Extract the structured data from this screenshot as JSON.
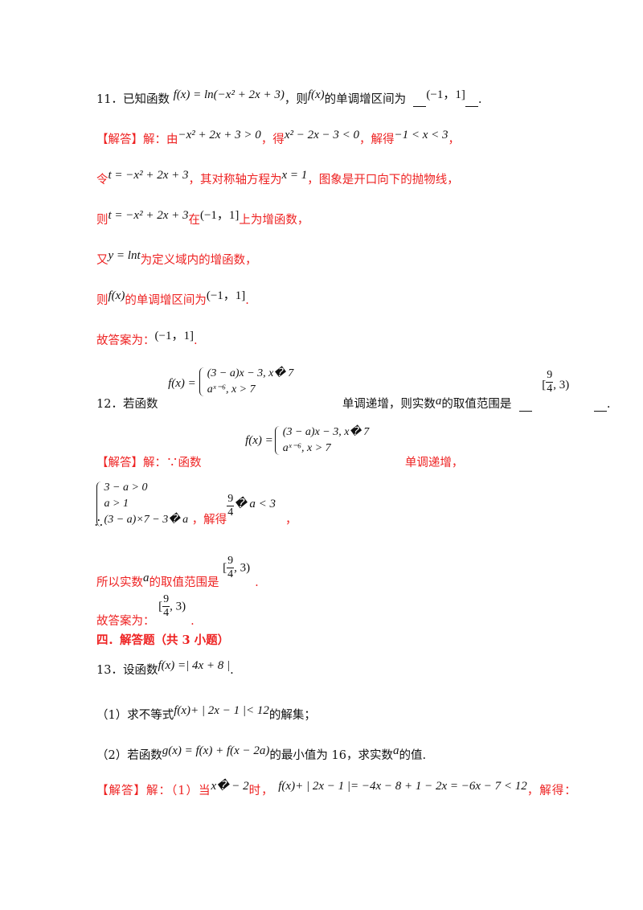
{
  "q11": {
    "num": "11．",
    "pre": "已知函数",
    "f1": "f(x) = ln(−x² + 2x + 3)",
    "mid": "，则",
    "f2": "f(x)",
    "post": "的单调增区间为",
    "ans": "(−1，1]",
    "end": "."
  },
  "a11": {
    "l1": {
      "tag": "【解答】",
      "s1": "解：由",
      "m1": "−x² + 2x + 3 > 0",
      "s2": "，得",
      "m2": "x² − 2x − 3 < 0",
      "s3": "，解得",
      "m3": "−1 < x < 3",
      "s4": "，"
    },
    "l2": {
      "s1": "令",
      "m1": "t = −x² + 2x + 3",
      "s2": "，其对称轴方程为",
      "m2": "x = 1",
      "s3": "，图象是开口向下的抛物线，"
    },
    "l3": {
      "s1": "则",
      "m1": "t = −x² + 2x + 3",
      "s2": "在",
      "m2": "(−1，1]",
      "s3": "上为增函数，"
    },
    "l4": {
      "s1": "又",
      "m1": "y = lnt",
      "s2": "为定义域内的增函数，"
    },
    "l5": {
      "s1": "则",
      "m1": "f(x)",
      "s2": "的单调增区间为",
      "m2": "(−1，1]",
      "s3": "."
    },
    "l6": {
      "s1": "故答案为：",
      "m1": "(−1，1]",
      "s2": "."
    }
  },
  "q12": {
    "num": "12．",
    "pre": "若函数",
    "f": "f(x) =",
    "case1": "(3 − a)x − 3, x� 7",
    "case2": "aˣ⁻⁶, x > 7",
    "post": "单调递增，则实数",
    "var": "a",
    "post2": "的取值范围是",
    "ans_open": "[",
    "ans_num": "9",
    "ans_den": "4",
    "ans_close": ", 3)",
    "end": "."
  },
  "a12": {
    "l1": {
      "tag": "【解答】",
      "s1": "解：∵函数",
      "f": "f(x) =",
      "case1": "(3 − a)x − 3, x� 7",
      "case2": "aˣ⁻⁶, x > 7",
      "s2": "单调递增，"
    },
    "l2": {
      "therefore": "∴",
      "c1": "3 − a > 0",
      "c2": "a > 1",
      "c3": "(3 − a)×7 − 3� a",
      "s1": "，解得",
      "num": "9",
      "den": "4",
      "rest": "� a < 3",
      "s2": "，"
    },
    "l3": {
      "s1": "所以实数",
      "var": "a",
      "s2": "的取值范围是",
      "open": "[",
      "num": "9",
      "den": "4",
      "close": ", 3)",
      "end": "."
    },
    "l4": {
      "s1": "故答案为：",
      "open": "[",
      "num": "9",
      "den": "4",
      "close": ", 3)",
      "end": "."
    }
  },
  "section": {
    "title": "四．解答题（共 3 小题）"
  },
  "q13": {
    "num": "13．",
    "pre": "设函数",
    "f": "f(x) =| 4x + 8 |",
    "end": ".",
    "p1": {
      "s1": "（1）求不等式",
      "m1": "f(x)+ | 2x − 1 |< 12",
      "s2": "的解集；"
    },
    "p2": {
      "s1": "（2）若函数",
      "m1": "g(x) = f(x) + f(x − 2a)",
      "s2": "的最小值为 16，求实数",
      "var": "a",
      "s3": "的值."
    }
  },
  "a13": {
    "tag": "【解答】",
    "s1": "解：（1）当",
    "m1": "x� − 2",
    "s2": "时，",
    "m2": "f(x)+ | 2x − 1 |= −4x − 8 + 1 − 2x = −6x − 7 < 12",
    "s3": "，解得："
  }
}
